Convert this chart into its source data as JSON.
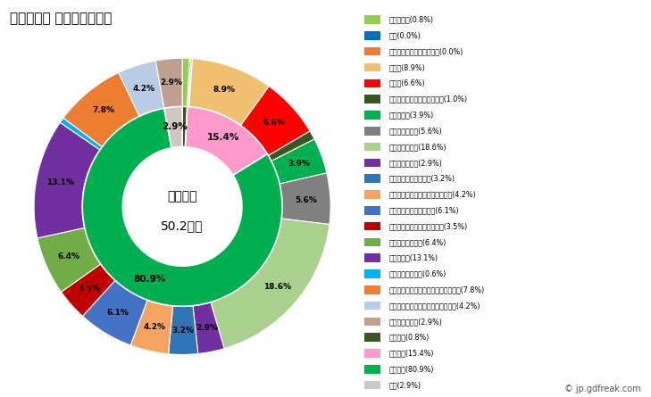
{
  "title": "２０２０年 仙台市の就業者",
  "center_line1": "就業者数",
  "center_line2": "50.2万人",
  "outer_labels": [
    "農業，林業(0.8%)",
    "漁業(0.0%)",
    "鉱業，採石業，砂利採取業(0.0%)",
    "建設業(8.9%)",
    "製造業(6.6%)",
    "電気・ガス・熱供給・水道業(1.0%)",
    "情報通信業(3.9%)",
    "運輸業，郵便業(5.6%)",
    "卸売業，小売業(18.6%)",
    "金融業，保険業(2.9%)",
    "不動産業，物品賃貸業(3.2%)",
    "学術研究，専門・技術サービス業(4.2%)",
    "宿泊業，飲食サービス業(6.1%)",
    "生活関連サービス業，娯楽業(3.5%)",
    "教育，学習支援業(6.4%)",
    "医療，福祉(13.1%)",
    "複合サービス事業(0.6%)",
    "サービス業（他に分類されないもの）(7.8%)",
    "公務（他に分類されるものを除く）(4.2%)",
    "分類不能の産業(2.9%)"
  ],
  "outer_values_plot": [
    0.8,
    0.15,
    0.15,
    8.9,
    6.6,
    1.0,
    3.9,
    5.6,
    18.6,
    2.9,
    3.2,
    4.2,
    6.1,
    3.5,
    6.4,
    13.1,
    0.6,
    7.8,
    4.2,
    2.9
  ],
  "outer_values_display": [
    0.8,
    0.0,
    0.0,
    8.9,
    6.6,
    1.0,
    3.9,
    5.6,
    18.6,
    2.9,
    3.2,
    4.2,
    6.1,
    3.5,
    6.4,
    13.1,
    0.6,
    7.8,
    4.2,
    2.9
  ],
  "outer_colors": [
    "#92d050",
    "#0070c0",
    "#ed7d31",
    "#f0c070",
    "#ff0000",
    "#375623",
    "#00b050",
    "#808080",
    "#a9d18e",
    "#7030a0",
    "#2e75b6",
    "#f4a460",
    "#4472c4",
    "#c00000",
    "#70ad47",
    "#7030a0",
    "#00b0f0",
    "#ed7d31",
    "#b8cce4",
    "#c0a090"
  ],
  "inner_labels": [
    "一次産業(0.8%)",
    "二次産業(15.4%)",
    "三次産業(80.9%)",
    "不明(2.9%)"
  ],
  "inner_values": [
    0.8,
    15.4,
    80.9,
    2.9
  ],
  "inner_colors": [
    "#375623",
    "#ff99cc",
    "#00b050",
    "#d0c8c0"
  ],
  "watermark": "© jp.gdfreak.com",
  "background_color": "#ffffff",
  "label_threshold_outer": 2.5,
  "label_threshold_inner": 2.0
}
